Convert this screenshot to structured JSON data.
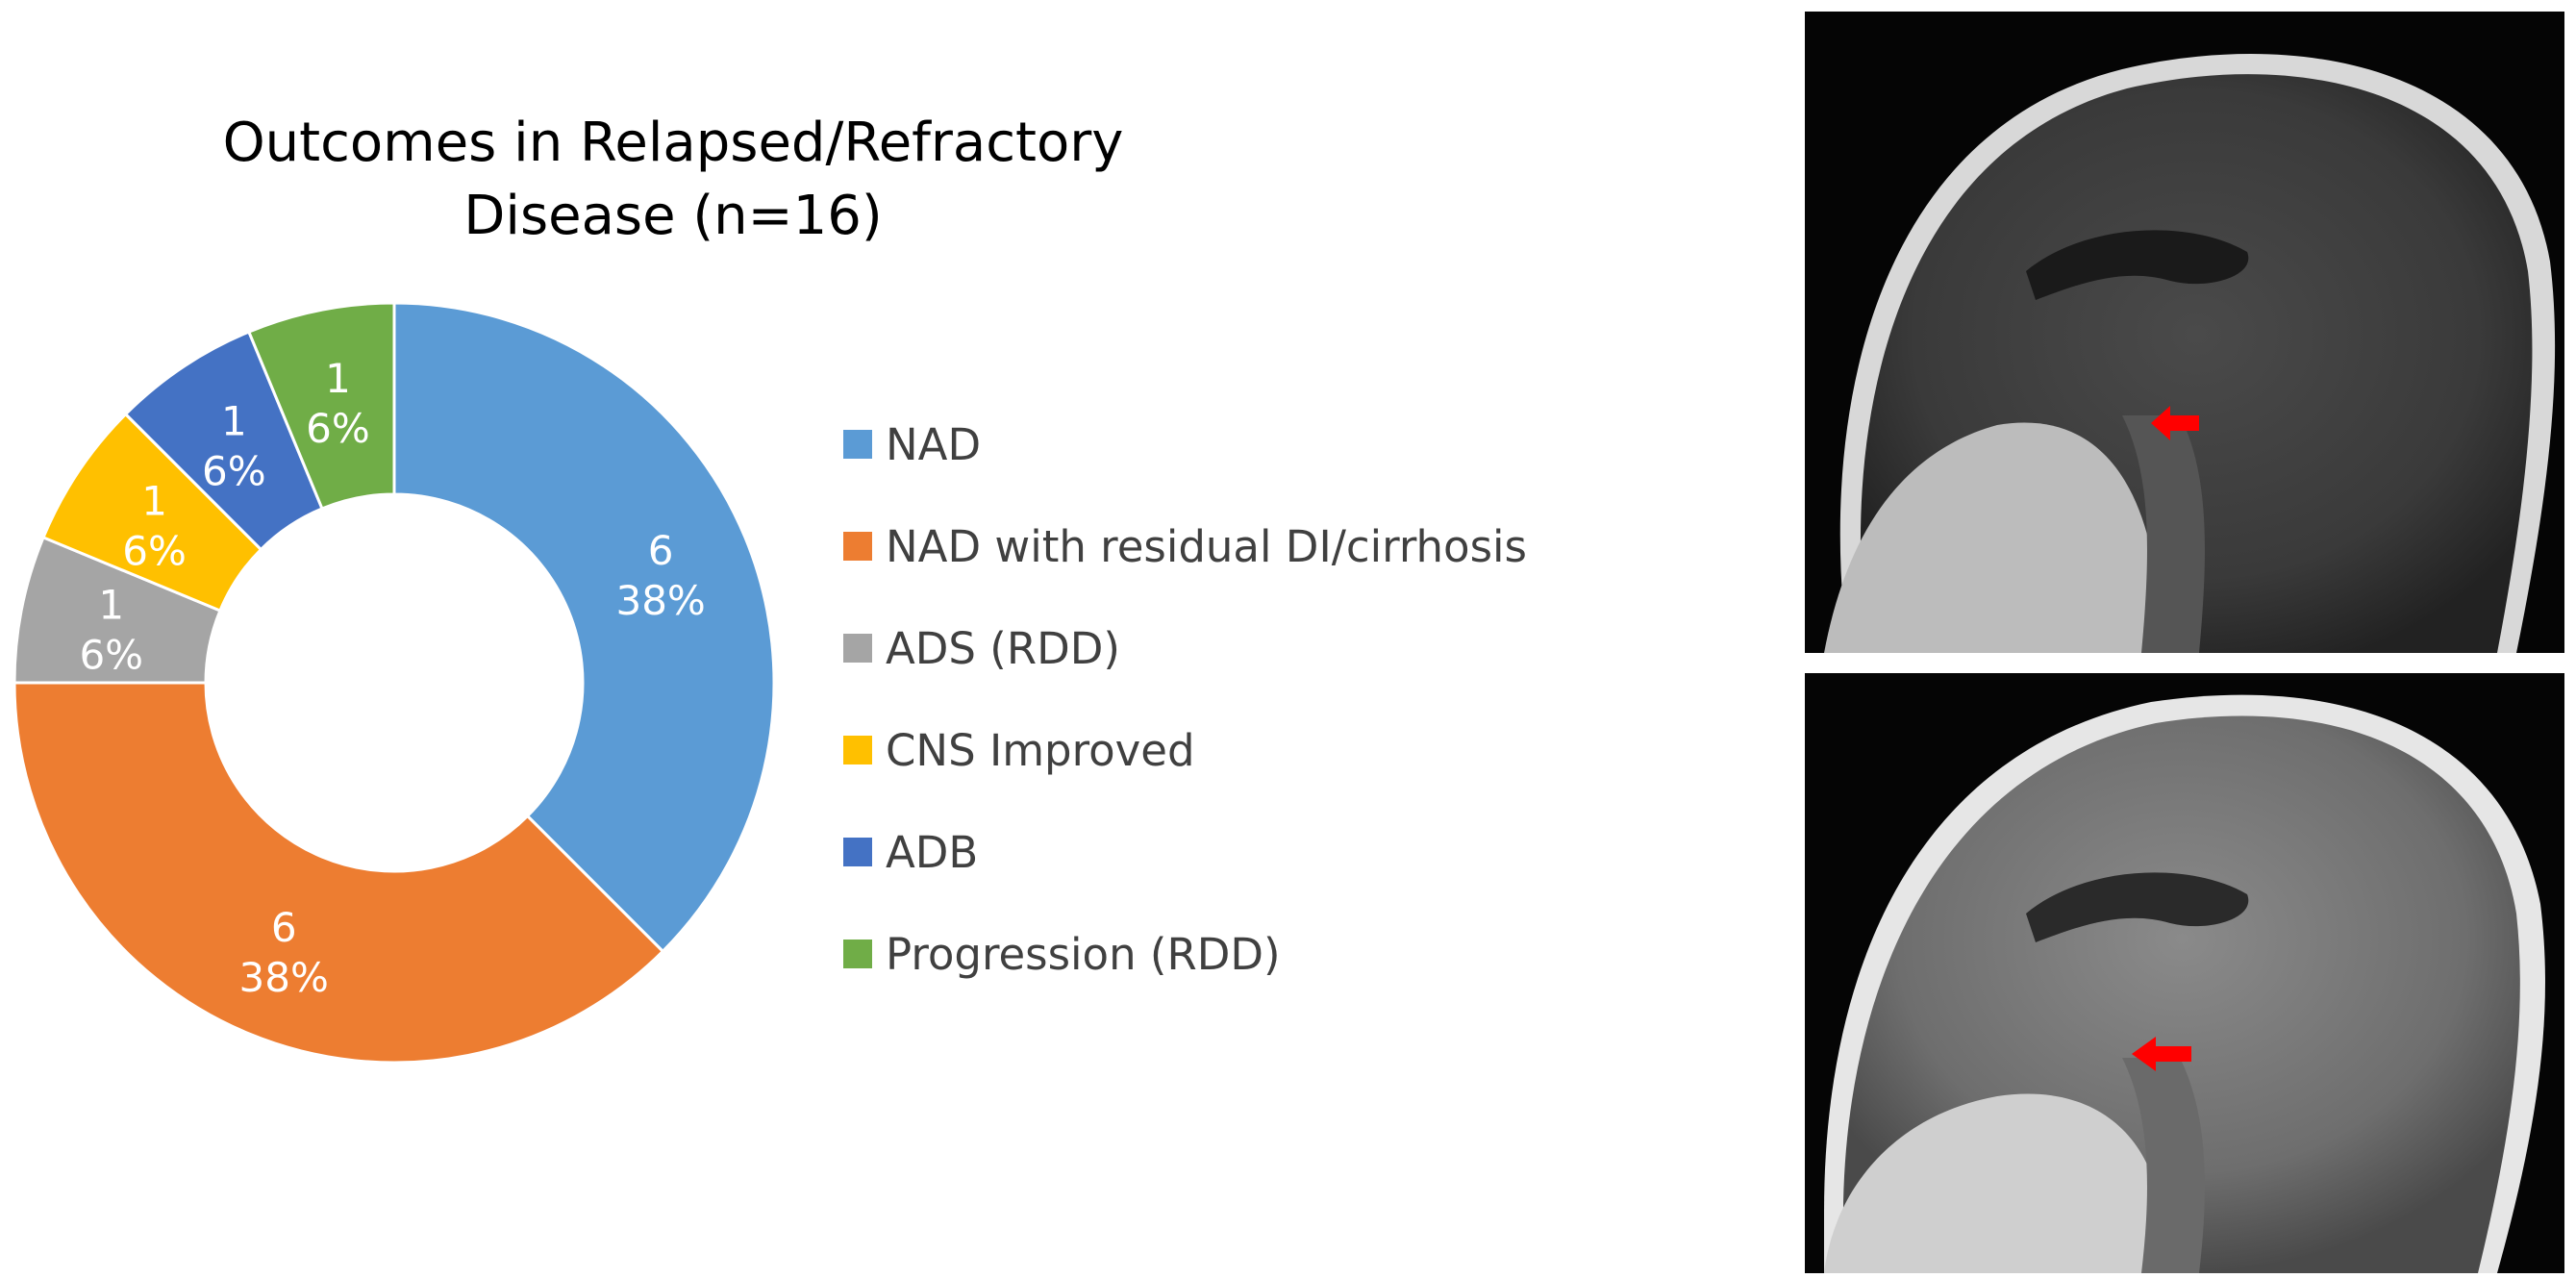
{
  "chart_data": {
    "type": "pie",
    "variant": "donut",
    "title": "Outcomes in Relapsed/Refractory Disease (n=16)",
    "title_lines": [
      "Outcomes in Relapsed/Refractory",
      "Disease (n=16)"
    ],
    "categories": [
      "NAD",
      "NAD with residual DI/cirrhosis",
      "ADS (RDD)",
      "CNS Improved",
      "ADB",
      "Progression (RDD)"
    ],
    "values": [
      6,
      6,
      1,
      1,
      1,
      1
    ],
    "percent_labels": [
      "38%",
      "38%",
      "6%",
      "6%",
      "6%",
      "6%"
    ],
    "colors": [
      "#5B9BD5",
      "#ED7D31",
      "#A5A5A5",
      "#FFC000",
      "#4472C4",
      "#70AD47"
    ],
    "legend_position": "right"
  },
  "images": {
    "top": "MRI sagittal brain scan with red arrow",
    "bottom": "MRI sagittal brain scan with red arrow"
  }
}
